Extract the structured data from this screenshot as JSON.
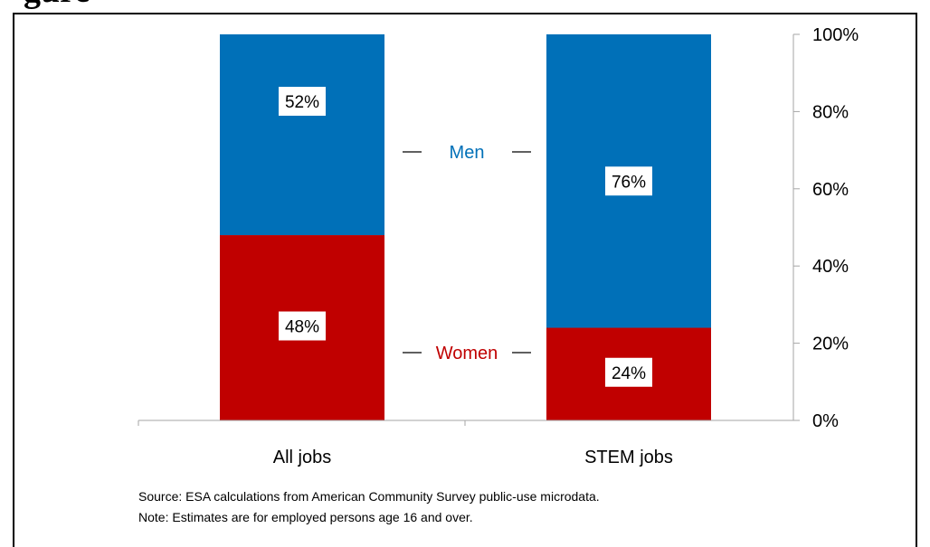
{
  "title": "gure",
  "chart_data": {
    "type": "bar",
    "stacked": true,
    "normalized": true,
    "categories": [
      "All jobs",
      "STEM jobs"
    ],
    "series": [
      {
        "name": "Women",
        "values": [
          48,
          24
        ],
        "color": "#C00000"
      },
      {
        "name": "Men",
        "values": [
          52,
          76
        ],
        "color": "#0070B8"
      }
    ],
    "data_labels": [
      [
        "48%",
        "24%"
      ],
      [
        "52%",
        "76%"
      ]
    ],
    "ylim": [
      0,
      100
    ],
    "y_axis_side": "right",
    "y_ticks": [
      "0%",
      "20%",
      "40%",
      "60%",
      "80%",
      "100%"
    ],
    "legend_placement": "inline between bars",
    "grid": false
  },
  "notes": {
    "source": "Source:  ESA calculations from American Community Survey public-use microdata.",
    "note": "Note: Estimates are for employed persons age 16 and over."
  }
}
